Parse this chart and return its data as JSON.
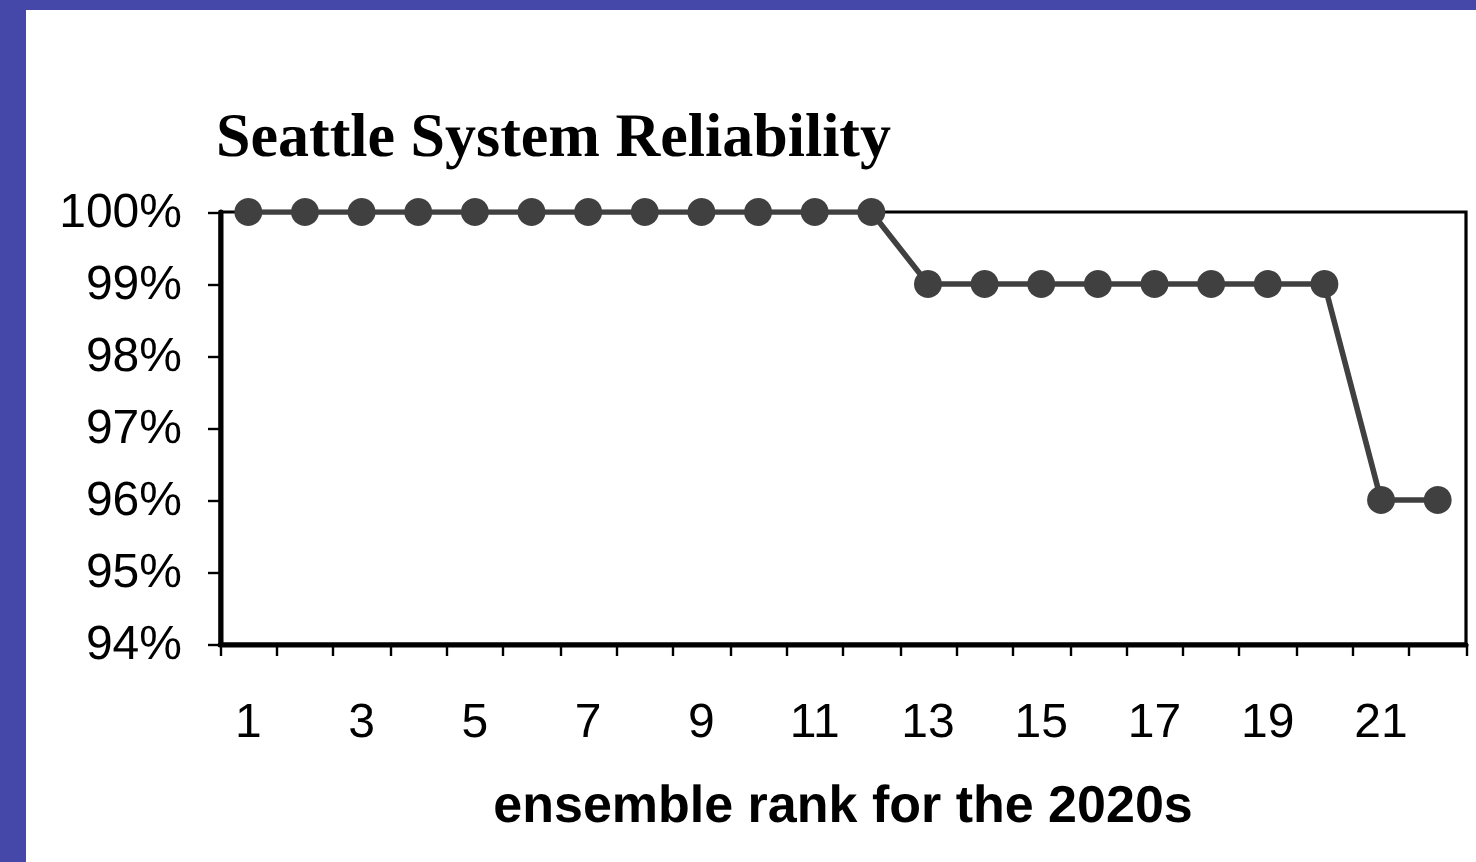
{
  "chart_data": {
    "type": "line",
    "title": "Seattle System Reliability",
    "xlabel": "ensemble rank for the 2020s",
    "x": [
      1,
      2,
      3,
      4,
      5,
      6,
      7,
      8,
      9,
      10,
      11,
      12,
      13,
      14,
      15,
      16,
      17,
      18,
      19,
      20,
      21,
      22
    ],
    "series": [
      {
        "color": "#404040",
        "values": [
          100,
          100,
          100,
          100,
          100,
          100,
          100,
          100,
          100,
          100,
          100,
          100,
          99,
          99,
          99,
          99,
          99,
          99,
          99,
          99,
          96,
          96
        ]
      }
    ],
    "xlim": [
      0.5,
      22.5
    ],
    "xticks": [
      {
        "value": 0.5,
        "label": null
      },
      1,
      {
        "value": 1.5,
        "label": null
      },
      {
        "value": 2.5,
        "label": null
      },
      3,
      {
        "value": 3.5,
        "label": null
      },
      {
        "value": 4.5,
        "label": null
      },
      5,
      {
        "value": 5.5,
        "label": null
      },
      {
        "value": 6.5,
        "label": null
      },
      7,
      {
        "value": 7.5,
        "label": null
      },
      {
        "value": 8.5,
        "label": null
      },
      9,
      {
        "value": 9.5,
        "label": null
      },
      {
        "value": 10.5,
        "label": null
      },
      11,
      {
        "value": 11.5,
        "label": null
      },
      {
        "value": 12.5,
        "label": null
      },
      13,
      {
        "value": 13.5,
        "label": null
      },
      {
        "value": 14.5,
        "label": null
      },
      15,
      {
        "value": 15.5,
        "label": null
      },
      {
        "value": 16.5,
        "label": null
      },
      17,
      {
        "value": 17.5,
        "label": null
      },
      {
        "value": 18.5,
        "label": null
      },
      19,
      {
        "value": 19.5,
        "label": null
      },
      {
        "value": 20.5,
        "label": null
      },
      21,
      {
        "value": 21.5,
        "label": null
      },
      {
        "value": 22.5,
        "label": null
      }
    ],
    "ylim": [
      94,
      100
    ],
    "yticks": [
      {
        "value": 94,
        "label": "94%"
      },
      {
        "value": 95,
        "label": "95%"
      },
      {
        "value": 96,
        "label": "96%"
      },
      {
        "value": 97,
        "label": "97%"
      },
      {
        "value": 98,
        "label": "98%"
      },
      {
        "value": 99,
        "label": "99%"
      },
      {
        "value": 100,
        "label": "100%"
      }
    ],
    "marker": "circle",
    "line_style": "solid"
  }
}
